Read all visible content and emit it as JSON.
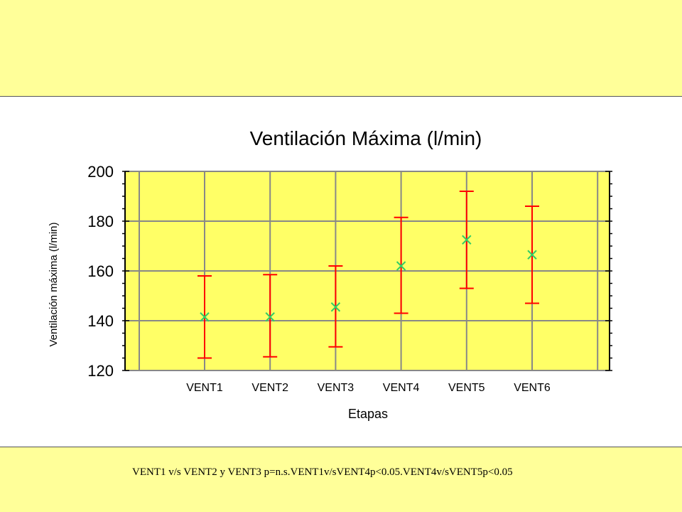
{
  "colors": {
    "page_bg": "#ffff99",
    "plot_bg": "#ffff66",
    "grid": "#888888",
    "error_bar": "#ff0000",
    "marker": "#33cc66"
  },
  "footnote": "VENT1 v/s VENT2 y VENT3 p=n.s.VENT1v/sVENT4p<0.05.VENT4v/sVENT5p<0.05",
  "chart_data": {
    "type": "scatter",
    "title": "Ventilación Máxima (l/min)",
    "xlabel": "Etapas",
    "ylabel": "Ventilación máxima (l/min)",
    "categories": [
      "VENT1",
      "VENT2",
      "VENT3",
      "VENT4",
      "VENT5",
      "VENT6"
    ],
    "means": [
      141.5,
      141.5,
      145.5,
      162,
      172.5,
      166.5
    ],
    "upper": [
      158,
      158.5,
      162,
      181.5,
      192,
      186
    ],
    "lower": [
      125,
      125.5,
      129.5,
      143,
      153,
      147
    ],
    "ylim": [
      120,
      200
    ],
    "yticks": [
      "120",
      "140",
      "160",
      "180",
      "200"
    ],
    "grid": true,
    "legend": "none"
  }
}
